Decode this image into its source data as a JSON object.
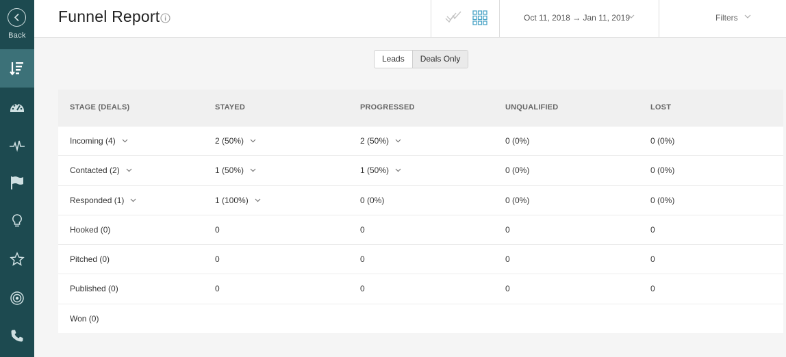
{
  "sidebar": {
    "back_label": "Back"
  },
  "header": {
    "title": "Funnel Report",
    "date_range": "Oct 11, 2018 → Jan 11, 2019",
    "filters_label": "Filters"
  },
  "toggle": {
    "leads": "Leads",
    "deals_only": "Deals Only"
  },
  "table": {
    "headers": [
      "STAGE (DEALS)",
      "STAYED",
      "PROGRESSED",
      "UNQUALIFIED",
      "LOST"
    ],
    "rows": [
      [
        "Incoming  (4)",
        "2  (50%)",
        "2  (50%)",
        "0  (0%)",
        "0  (0%)"
      ],
      [
        "Contacted  (2)",
        "1  (50%)",
        "1  (50%)",
        "0  (0%)",
        "0  (0%)"
      ],
      [
        "Responded  (1)",
        "1  (100%)",
        "0  (0%)",
        "0  (0%)",
        "0  (0%)"
      ],
      [
        "Hooked  (0)",
        "0",
        "0",
        "0",
        "0"
      ],
      [
        "Pitched  (0)",
        "0",
        "0",
        "0",
        "0"
      ],
      [
        "Published  (0)",
        "0",
        "0",
        "0",
        "0"
      ],
      [
        "Won  (0)",
        "",
        "",
        "",
        ""
      ]
    ]
  },
  "colors": {
    "sidebar_bg": "#1d4a50",
    "sidebar_active": "#3c7178",
    "accent": "#4aa3c6"
  }
}
